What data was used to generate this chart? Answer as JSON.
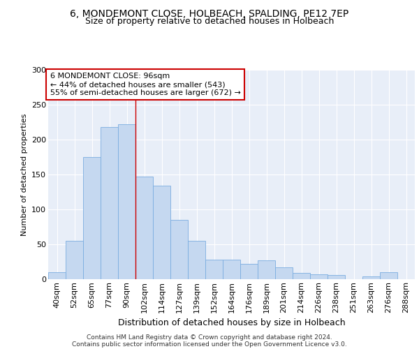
{
  "title1": "6, MONDEMONT CLOSE, HOLBEACH, SPALDING, PE12 7EP",
  "title2": "Size of property relative to detached houses in Holbeach",
  "xlabel": "Distribution of detached houses by size in Holbeach",
  "ylabel": "Number of detached properties",
  "categories": [
    "40sqm",
    "52sqm",
    "65sqm",
    "77sqm",
    "90sqm",
    "102sqm",
    "114sqm",
    "127sqm",
    "139sqm",
    "152sqm",
    "164sqm",
    "176sqm",
    "189sqm",
    "201sqm",
    "214sqm",
    "226sqm",
    "238sqm",
    "251sqm",
    "263sqm",
    "276sqm",
    "288sqm"
  ],
  "values": [
    10,
    55,
    175,
    218,
    222,
    147,
    134,
    85,
    55,
    28,
    28,
    22,
    27,
    17,
    9,
    7,
    6,
    0,
    4,
    10,
    0
  ],
  "bar_color": "#c5d8f0",
  "bar_edge_color": "#7aade0",
  "red_line_index": 4,
  "annotation_line1": "6 MONDEMONT CLOSE: 96sqm",
  "annotation_line2": "← 44% of detached houses are smaller (543)",
  "annotation_line3": "55% of semi-detached houses are larger (672) →",
  "ylim": [
    0,
    300
  ],
  "yticks": [
    0,
    50,
    100,
    150,
    200,
    250,
    300
  ],
  "background_color": "#e8eef8",
  "grid_color": "#ffffff",
  "footnote1": "Contains HM Land Registry data © Crown copyright and database right 2024.",
  "footnote2": "Contains public sector information licensed under the Open Government Licence v3.0.",
  "title1_fontsize": 10,
  "title2_fontsize": 9,
  "ylabel_fontsize": 8,
  "xlabel_fontsize": 9,
  "tick_fontsize": 8,
  "annot_fontsize": 8
}
